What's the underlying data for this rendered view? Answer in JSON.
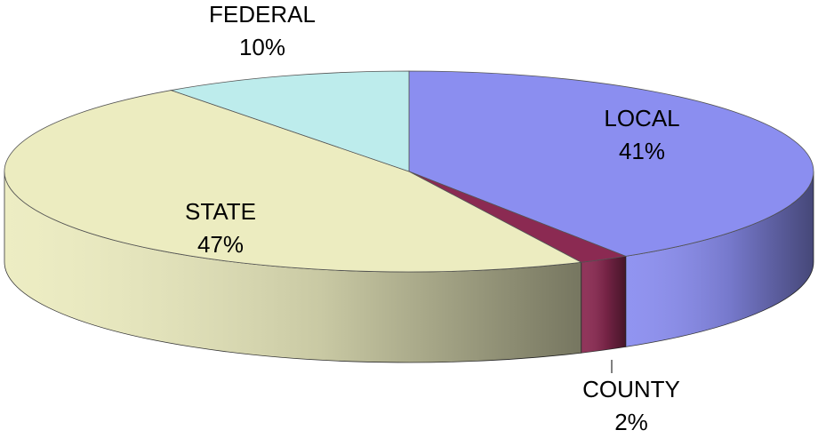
{
  "chart_data": {
    "type": "pie3d",
    "categories": [
      "LOCAL",
      "COUNTY",
      "STATE",
      "FEDERAL"
    ],
    "values": [
      41,
      2,
      47,
      10
    ],
    "value_labels": [
      "41%",
      "2%",
      "47%",
      "10%"
    ],
    "colors": [
      "#8b8ef0",
      "#8b2a52",
      "#ececc0",
      "#bdecec"
    ]
  }
}
